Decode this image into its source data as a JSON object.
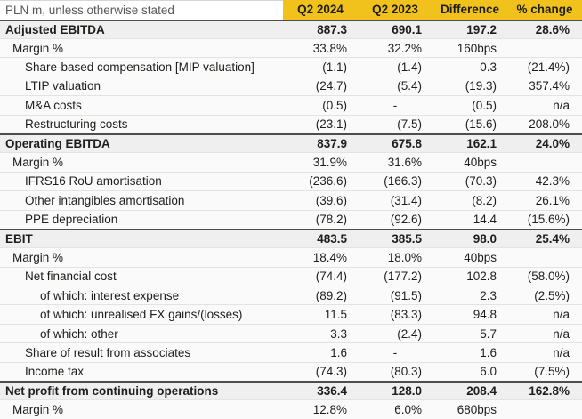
{
  "colors": {
    "accent_yellow": "#f1c21c",
    "total_row_bg": "#efefef",
    "dark_rule": "#4d4d4d",
    "header_label_text": "#58585a",
    "body_text": "#1d1d1b"
  },
  "chart_data": {
    "type": "table",
    "columns": [
      "PLN m, unless otherwise stated",
      "Q2 2024",
      "Q2 2023",
      "Difference",
      "% change"
    ],
    "rows": [
      {
        "label": "Adjusted EBITDA",
        "values": [
          "887.3",
          "690.1",
          "197.2",
          "28.6%"
        ],
        "row_type": "total"
      },
      {
        "label": "Margin %",
        "values": [
          "33.8%",
          "32.2%",
          "160bps",
          ""
        ],
        "row_type": "margin"
      },
      {
        "label": "Share-based compensation [MIP valuation]",
        "values": [
          "(1.1)",
          "(1.4)",
          "0.3",
          "(21.4%)"
        ],
        "row_type": "item"
      },
      {
        "label": "LTIP valuation",
        "values": [
          "(24.7)",
          "(5.4)",
          "(19.3)",
          "357.4%"
        ],
        "row_type": "item"
      },
      {
        "label": "M&A costs",
        "values": [
          "(0.5)",
          "-",
          "(0.5)",
          "n/a"
        ],
        "row_type": "item"
      },
      {
        "label": "Restructuring costs",
        "values": [
          "(23.1)",
          "(7.5)",
          "(15.6)",
          "208.0%"
        ],
        "row_type": "item"
      },
      {
        "label": "Operating EBITDA",
        "values": [
          "837.9",
          "675.8",
          "162.1",
          "24.0%"
        ],
        "row_type": "total"
      },
      {
        "label": "Margin %",
        "values": [
          "31.9%",
          "31.6%",
          "40bps",
          ""
        ],
        "row_type": "margin"
      },
      {
        "label": "IFRS16 RoU amortisation",
        "values": [
          "(236.6)",
          "(166.3)",
          "(70.3)",
          "42.3%"
        ],
        "row_type": "item"
      },
      {
        "label": "Other intangibles amortisation",
        "values": [
          "(39.6)",
          "(31.4)",
          "(8.2)",
          "26.1%"
        ],
        "row_type": "item"
      },
      {
        "label": "PPE depreciation",
        "values": [
          "(78.2)",
          "(92.6)",
          "14.4",
          "(15.6%)"
        ],
        "row_type": "item"
      },
      {
        "label": "EBIT",
        "values": [
          "483.5",
          "385.5",
          "98.0",
          "25.4%"
        ],
        "row_type": "total"
      },
      {
        "label": "Margin %",
        "values": [
          "18.4%",
          "18.0%",
          "40bps",
          ""
        ],
        "row_type": "margin"
      },
      {
        "label": "Net financial cost",
        "values": [
          "(74.4)",
          "(177.2)",
          "102.8",
          "(58.0%)"
        ],
        "row_type": "item"
      },
      {
        "label": "of which: interest expense",
        "values": [
          "(89.2)",
          "(91.5)",
          "2.3",
          "(2.5%)"
        ],
        "row_type": "subitem"
      },
      {
        "label": "of which: unrealised FX gains/(losses)",
        "values": [
          "11.5",
          "(83.3)",
          "94.8",
          "n/a"
        ],
        "row_type": "subitem"
      },
      {
        "label": "of which: other",
        "values": [
          "3.3",
          "(2.4)",
          "5.7",
          "n/a"
        ],
        "row_type": "subitem"
      },
      {
        "label": "Share of result from associates",
        "values": [
          "1.6",
          "-",
          "1.6",
          "n/a"
        ],
        "row_type": "item"
      },
      {
        "label": "Income tax",
        "values": [
          "(74.3)",
          "(80.3)",
          "6.0",
          "(7.5%)"
        ],
        "row_type": "item"
      },
      {
        "label": "Net profit from continuing operations",
        "values": [
          "336.4",
          "128.0",
          "208.4",
          "162.8%"
        ],
        "row_type": "total"
      },
      {
        "label": "Margin %",
        "values": [
          "12.8%",
          "6.0%",
          "680bps",
          ""
        ],
        "row_type": "margin"
      }
    ]
  }
}
